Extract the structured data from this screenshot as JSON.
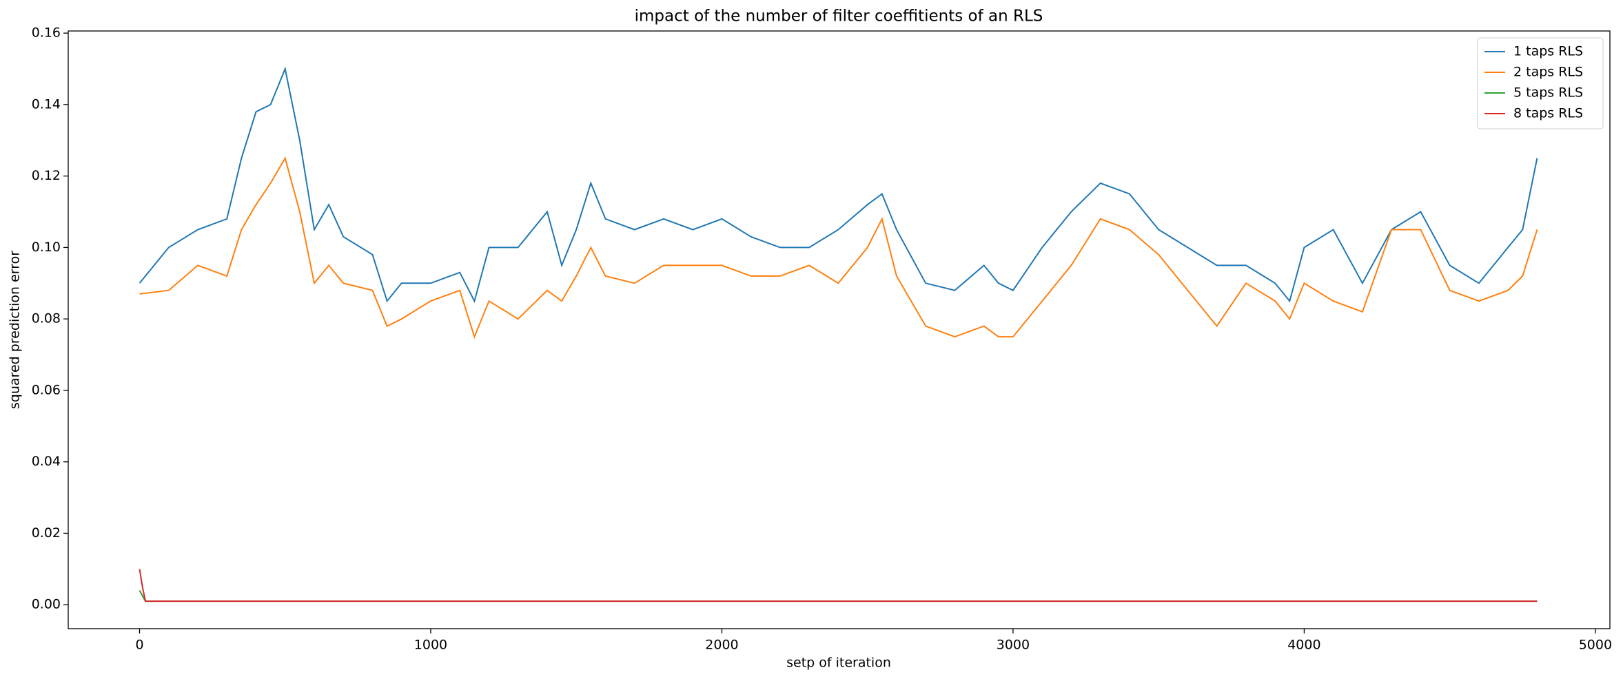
{
  "chart_data": {
    "type": "line",
    "title": "impact of the number of filter coeffitients of an RLS",
    "xlabel": "setp of iteration",
    "ylabel": "squared prediction error",
    "xlim": [
      -245,
      5050
    ],
    "ylim": [
      -0.0067,
      0.1606
    ],
    "xticks": [
      0,
      1000,
      2000,
      3000,
      4000,
      5000
    ],
    "yticks": [
      {
        "value": 0,
        "label": "0.00"
      },
      0.02,
      0.04,
      0.06,
      0.08,
      {
        "value": 0.1,
        "label": "0.10"
      },
      0.12,
      0.14,
      0.16
    ],
    "legend": "upper right",
    "series": [
      {
        "name": "1 taps RLS",
        "color": "#1f77b4",
        "x": [
          0,
          100,
          200,
          300,
          350,
          400,
          450,
          500,
          550,
          600,
          650,
          700,
          800,
          850,
          900,
          1000,
          1100,
          1150,
          1200,
          1300,
          1400,
          1450,
          1500,
          1550,
          1600,
          1700,
          1800,
          1900,
          2000,
          2100,
          2200,
          2300,
          2400,
          2500,
          2550,
          2600,
          2700,
          2800,
          2900,
          2950,
          3000,
          3100,
          3200,
          3300,
          3400,
          3500,
          3600,
          3700,
          3800,
          3900,
          3950,
          4000,
          4100,
          4200,
          4300,
          4400,
          4500,
          4600,
          4700,
          4750,
          4800
        ],
        "values": [
          0.09,
          0.1,
          0.105,
          0.108,
          0.125,
          0.138,
          0.14,
          0.15,
          0.13,
          0.105,
          0.112,
          0.103,
          0.098,
          0.085,
          0.09,
          0.09,
          0.093,
          0.085,
          0.1,
          0.1,
          0.11,
          0.095,
          0.105,
          0.118,
          0.108,
          0.105,
          0.108,
          0.105,
          0.108,
          0.103,
          0.1,
          0.1,
          0.105,
          0.112,
          0.115,
          0.105,
          0.09,
          0.088,
          0.095,
          0.09,
          0.088,
          0.1,
          0.11,
          0.118,
          0.115,
          0.105,
          0.1,
          0.095,
          0.095,
          0.09,
          0.085,
          0.1,
          0.105,
          0.09,
          0.105,
          0.11,
          0.095,
          0.09,
          0.1,
          0.105,
          0.125
        ]
      },
      {
        "name": "2 taps RLS",
        "color": "#ff7f0e",
        "x": [
          0,
          100,
          200,
          300,
          350,
          400,
          450,
          500,
          550,
          600,
          650,
          700,
          800,
          850,
          900,
          1000,
          1100,
          1150,
          1200,
          1300,
          1400,
          1450,
          1500,
          1550,
          1600,
          1700,
          1800,
          1900,
          2000,
          2100,
          2200,
          2300,
          2400,
          2500,
          2550,
          2600,
          2700,
          2800,
          2900,
          2950,
          3000,
          3100,
          3200,
          3300,
          3400,
          3500,
          3600,
          3700,
          3800,
          3900,
          3950,
          4000,
          4100,
          4200,
          4300,
          4400,
          4500,
          4600,
          4700,
          4750,
          4800
        ],
        "values": [
          0.087,
          0.088,
          0.095,
          0.092,
          0.105,
          0.112,
          0.118,
          0.125,
          0.11,
          0.09,
          0.095,
          0.09,
          0.088,
          0.078,
          0.08,
          0.085,
          0.088,
          0.075,
          0.085,
          0.08,
          0.088,
          0.085,
          0.092,
          0.1,
          0.092,
          0.09,
          0.095,
          0.095,
          0.095,
          0.092,
          0.092,
          0.095,
          0.09,
          0.1,
          0.108,
          0.092,
          0.078,
          0.075,
          0.078,
          0.075,
          0.075,
          0.085,
          0.095,
          0.108,
          0.105,
          0.098,
          0.088,
          0.078,
          0.09,
          0.085,
          0.08,
          0.09,
          0.085,
          0.082,
          0.105,
          0.105,
          0.088,
          0.085,
          0.088,
          0.092,
          0.105
        ]
      },
      {
        "name": "5 taps RLS",
        "color": "#2ca02c",
        "x": [
          0,
          20,
          4800
        ],
        "values": [
          0.004,
          0.001,
          0.001
        ]
      },
      {
        "name": "8 taps RLS",
        "color": "#d62728",
        "x": [
          0,
          10,
          20,
          4800
        ],
        "values": [
          0.01,
          0.005,
          0.001,
          0.001
        ]
      }
    ]
  }
}
